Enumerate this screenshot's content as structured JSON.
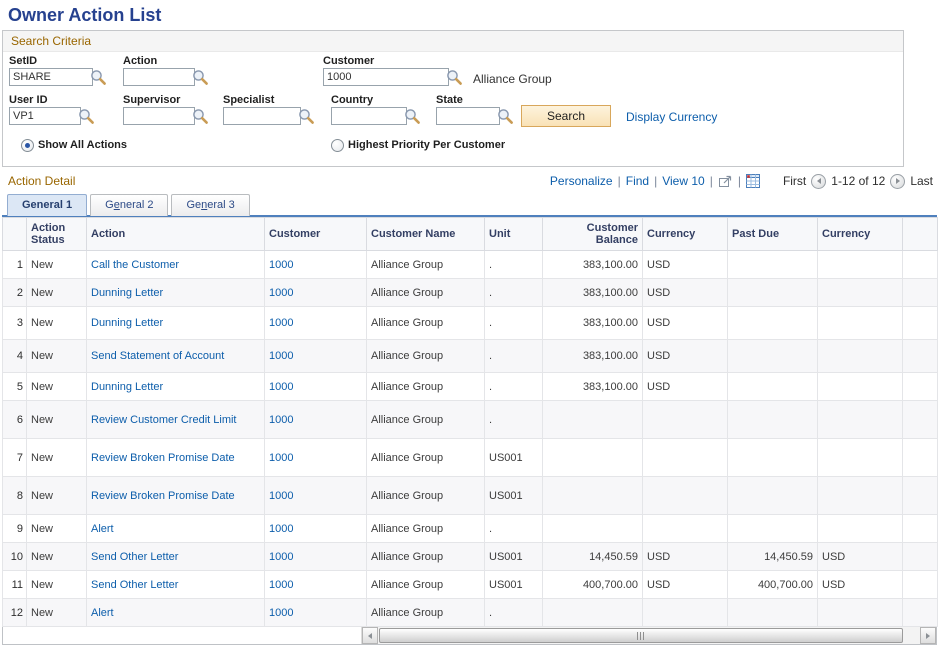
{
  "page_title": "Owner Action List",
  "colors": {
    "title_blue": "#26418f",
    "section_label_brown": "#996600",
    "link_blue": "#0d5eab",
    "tab_underline_blue": "#4f80bd",
    "search_button_bg": "#f9e2b6",
    "grid_header_text": "#333f63"
  },
  "search": {
    "title": "Search Criteria",
    "setid_label": "SetID",
    "setid_value": "SHARE",
    "action_label": "Action",
    "action_value": "",
    "customer_label": "Customer",
    "customer_value": "1000",
    "customer_name": "Alliance Group",
    "userid_label": "User ID",
    "userid_value": "VP1",
    "supervisor_label": "Supervisor",
    "supervisor_value": "",
    "specialist_label": "Specialist",
    "specialist_value": "",
    "country_label": "Country",
    "country_value": "",
    "state_label": "State",
    "state_value": "",
    "search_button": "Search",
    "display_currency_link": "Display Currency",
    "radio_show_all": "Show All Actions",
    "radio_highest_priority": "Highest Priority Per Customer"
  },
  "grid": {
    "title": "Action Detail",
    "nav": {
      "personalize": "Personalize",
      "find": "Find",
      "view": "View 10",
      "pipe": "|",
      "first": "First",
      "range": "1-12 of 12",
      "last": "Last"
    },
    "icons": {
      "lookup": "magnifier-glass",
      "popup": "zoom-new-window",
      "download": "download-to-spreadsheet-grid",
      "prev": "left-arrow-circle",
      "next": "right-arrow-circle"
    },
    "tabs": [
      {
        "label": "General 1",
        "underline": -1,
        "active": true
      },
      {
        "label": "General 2",
        "underline": 1,
        "active": false
      },
      {
        "label": "General 3",
        "underline": 2,
        "active": false
      }
    ],
    "columns": [
      "",
      "Action Status",
      "Action",
      "Customer",
      "Customer Name",
      "Unit",
      "Customer Balance",
      "Currency",
      "Past Due",
      "Currency"
    ],
    "rows": [
      {
        "num": "1",
        "status": "New",
        "action": "Call the Customer",
        "customer": "1000",
        "customer_name": "Alliance Group",
        "unit": ".",
        "balance": "383,100.00",
        "currency": "USD",
        "past_due": "",
        "past_due_currency": ""
      },
      {
        "num": "2",
        "status": "New",
        "action": "Dunning Letter",
        "customer": "1000",
        "customer_name": "Alliance Group",
        "unit": ".",
        "balance": "383,100.00",
        "currency": "USD",
        "past_due": "",
        "past_due_currency": ""
      },
      {
        "num": "3",
        "status": "New",
        "action": "Dunning Letter",
        "customer": "1000",
        "customer_name": "Alliance Group",
        "unit": ".",
        "balance": "383,100.00",
        "currency": "USD",
        "past_due": "",
        "past_due_currency": ""
      },
      {
        "num": "4",
        "status": "New",
        "action": "Send Statement of Account",
        "customer": "1000",
        "customer_name": "Alliance Group",
        "unit": ".",
        "balance": "383,100.00",
        "currency": "USD",
        "past_due": "",
        "past_due_currency": ""
      },
      {
        "num": "5",
        "status": "New",
        "action": "Dunning Letter",
        "customer": "1000",
        "customer_name": "Alliance Group",
        "unit": ".",
        "balance": "383,100.00",
        "currency": "USD",
        "past_due": "",
        "past_due_currency": ""
      },
      {
        "num": "6",
        "status": "New",
        "action": "Review Customer Credit Limit",
        "customer": "1000",
        "customer_name": "Alliance Group",
        "unit": ".",
        "balance": "",
        "currency": "",
        "past_due": "",
        "past_due_currency": ""
      },
      {
        "num": "7",
        "status": "New",
        "action": "Review Broken Promise Date",
        "customer": "1000",
        "customer_name": "Alliance Group",
        "unit": "US001",
        "balance": "",
        "currency": "",
        "past_due": "",
        "past_due_currency": ""
      },
      {
        "num": "8",
        "status": "New",
        "action": "Review Broken Promise Date",
        "customer": "1000",
        "customer_name": "Alliance Group",
        "unit": "US001",
        "balance": "",
        "currency": "",
        "past_due": "",
        "past_due_currency": ""
      },
      {
        "num": "9",
        "status": "New",
        "action": "Alert",
        "customer": "1000",
        "customer_name": "Alliance Group",
        "unit": ".",
        "balance": "",
        "currency": "",
        "past_due": "",
        "past_due_currency": ""
      },
      {
        "num": "10",
        "status": "New",
        "action": "Send Other Letter",
        "customer": "1000",
        "customer_name": "Alliance Group",
        "unit": "US001",
        "balance": "14,450.59",
        "currency": "USD",
        "past_due": "14,450.59",
        "past_due_currency": "USD"
      },
      {
        "num": "11",
        "status": "New",
        "action": "Send Other Letter",
        "customer": "1000",
        "customer_name": "Alliance Group",
        "unit": "US001",
        "balance": "400,700.00",
        "currency": "USD",
        "past_due": "400,700.00",
        "past_due_currency": "USD"
      },
      {
        "num": "12",
        "status": "New",
        "action": "Alert",
        "customer": "1000",
        "customer_name": "Alliance Group",
        "unit": ".",
        "balance": "",
        "currency": "",
        "past_due": "",
        "past_due_currency": ""
      }
    ]
  }
}
